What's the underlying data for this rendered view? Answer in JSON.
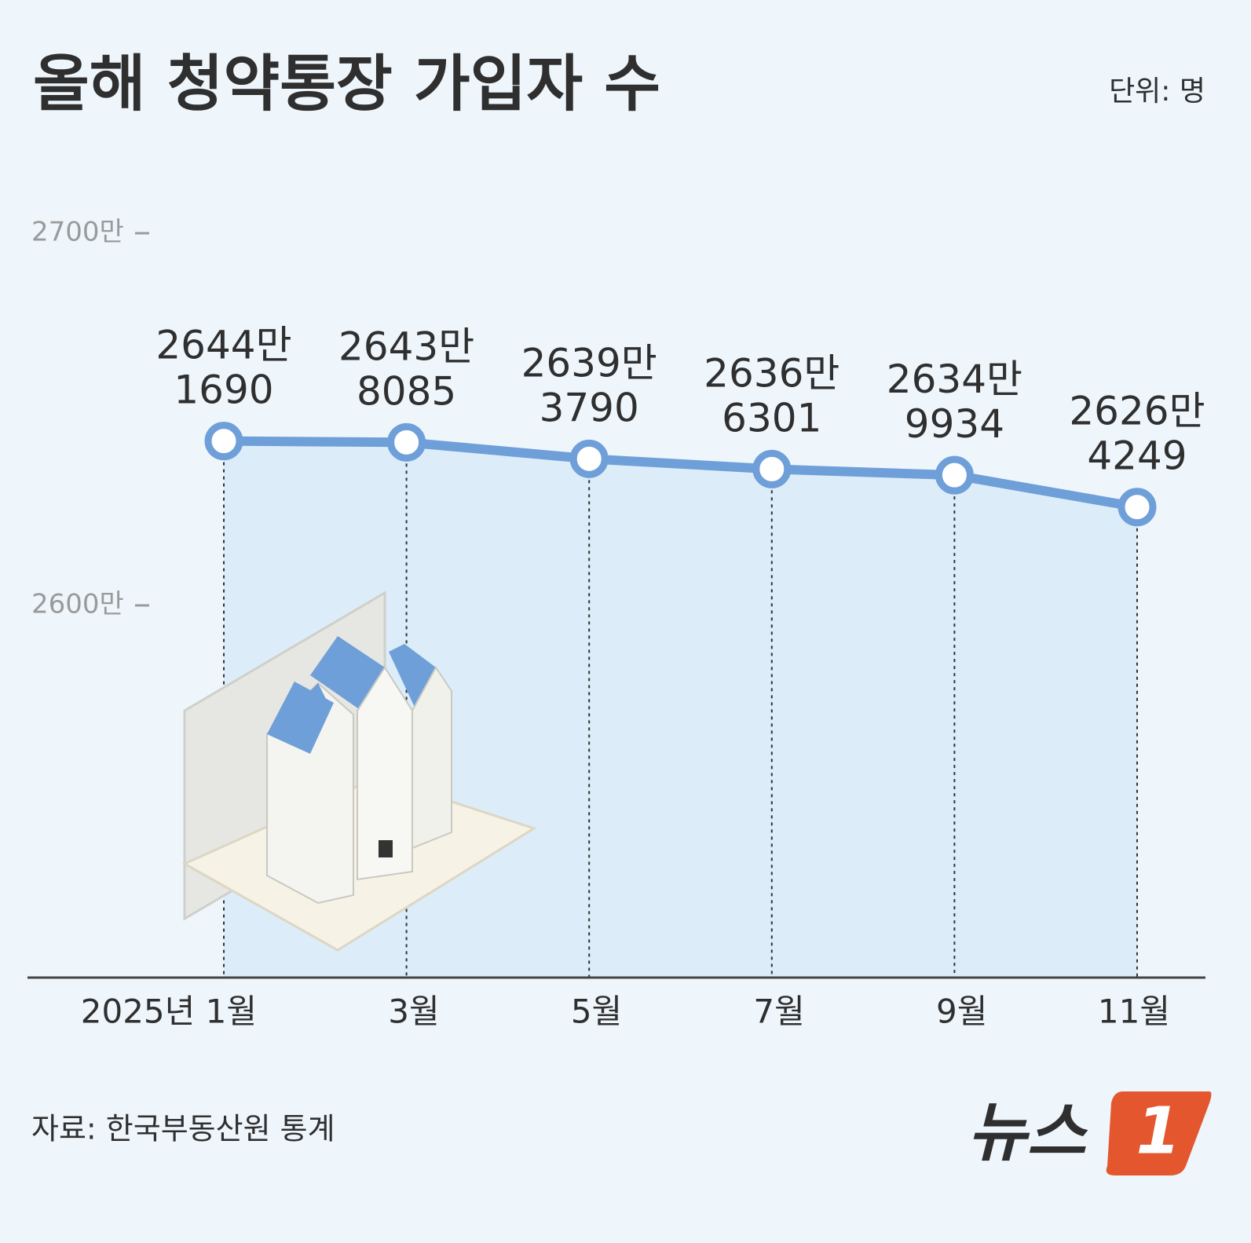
{
  "chart_data": {
    "type": "line",
    "title": "올해 청약통장 가입자 수",
    "unit_note": "단위: 명",
    "source": "자료: 한국부동산원 통계",
    "logo_text": "뉴스",
    "logo_badge": "1",
    "categories": [
      "2025년 1월",
      "3월",
      "5월",
      "7월",
      "9월",
      "11월"
    ],
    "values": [
      26441690,
      26438085,
      26393790,
      26366301,
      26349934,
      26264249
    ],
    "value_labels": [
      "2644만\n1690",
      "2643만\n8085",
      "2639만\n3790",
      "2636만\n6301",
      "2634만\n9934",
      "2626만\n4249"
    ],
    "color": "#6f9fd8",
    "ylim": [
      25000000,
      27000000
    ],
    "yticks": [
      {
        "value": 26000000,
        "label": "2600만"
      },
      {
        "value": 27000000,
        "label": "2700만"
      }
    ]
  }
}
